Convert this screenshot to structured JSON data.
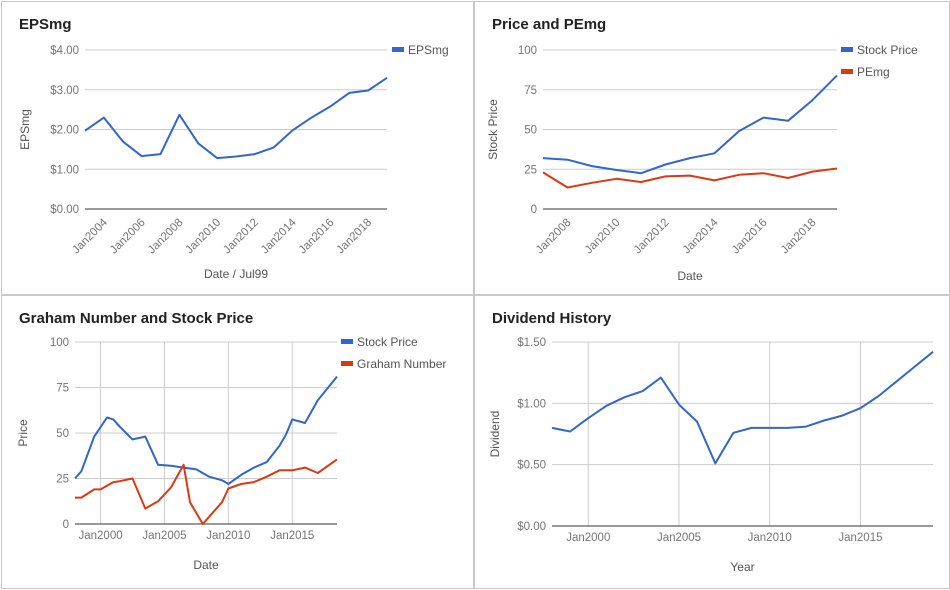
{
  "colors": {
    "blue": "#3366cc",
    "red": "#dc3912",
    "grid": "#cccccc",
    "axis": "#333333"
  },
  "chart_data": [
    {
      "type": "line",
      "title": "EPSmg",
      "xlabel": "Date / Jul99",
      "ylabel": "EPSmg",
      "xlim": [
        2003.0,
        2019.0
      ],
      "ylim": [
        0,
        4
      ],
      "yticks": [
        0,
        1,
        2,
        3,
        4
      ],
      "yticklabels": [
        "$0.00",
        "$1.00",
        "$2.00",
        "$3.00",
        "$4.00"
      ],
      "xticks": [
        2004,
        2006,
        2008,
        2010,
        2012,
        2014,
        2016,
        2018
      ],
      "xticklabels": [
        "Jan2004",
        "Jan2006",
        "Jan2008",
        "Jan2010",
        "Jan2012",
        "Jan2014",
        "Jan2016",
        "Jan2018"
      ],
      "x_grid": false,
      "legend": "right",
      "series": [
        {
          "name": "EPSmg",
          "color": "#3366cc",
          "x": [
            2003.0,
            2004.0,
            2005.0,
            2006.0,
            2007.0,
            2008.0,
            2009.0,
            2010.0,
            2011.0,
            2012.0,
            2013.0,
            2014.0,
            2015.0,
            2016.0,
            2017.0,
            2018.0,
            2019.0
          ],
          "y": [
            1.97,
            2.3,
            1.7,
            1.33,
            1.38,
            2.37,
            1.65,
            1.28,
            1.32,
            1.38,
            1.55,
            1.98,
            2.3,
            2.58,
            2.92,
            2.98,
            3.3
          ]
        }
      ]
    },
    {
      "type": "line",
      "title": "Price and PEmg",
      "xlabel": "Date",
      "ylabel": "Stock Price",
      "xlim": [
        2007.0,
        2019.0
      ],
      "ylim": [
        0,
        100
      ],
      "yticks": [
        0,
        25,
        50,
        75,
        100
      ],
      "yticklabels": [
        "0",
        "25",
        "50",
        "75",
        "100"
      ],
      "xticks": [
        2008,
        2010,
        2012,
        2014,
        2016,
        2018
      ],
      "xticklabels": [
        "Jan2008",
        "Jan2010",
        "Jan2012",
        "Jan2014",
        "Jan2016",
        "Jan2018"
      ],
      "x_grid": false,
      "legend": "right",
      "series": [
        {
          "name": "Stock Price",
          "color": "#3366cc",
          "x": [
            2007.0,
            2008.0,
            2009.0,
            2010.0,
            2011.0,
            2012.0,
            2013.0,
            2014.0,
            2015.0,
            2016.0,
            2017.0,
            2018.0,
            2019.0
          ],
          "y": [
            32,
            31,
            27,
            24.5,
            22.5,
            28,
            32,
            35,
            49,
            57.5,
            55.5,
            68.5,
            84
          ]
        },
        {
          "name": "PEmg",
          "color": "#dc3912",
          "x": [
            2007.0,
            2008.0,
            2009.0,
            2010.0,
            2011.0,
            2012.0,
            2013.0,
            2014.0,
            2015.0,
            2016.0,
            2017.0,
            2018.0,
            2019.0
          ],
          "y": [
            23,
            13.5,
            16.5,
            19,
            17,
            20.5,
            21,
            18,
            21.5,
            22.5,
            19.5,
            23.5,
            25.5
          ]
        }
      ]
    },
    {
      "type": "line",
      "title": "Graham Number and Stock Price",
      "xlabel": "Date",
      "ylabel": "Price",
      "xlim": [
        1998.0,
        2018.5
      ],
      "ylim": [
        0,
        100
      ],
      "yticks": [
        0,
        25,
        50,
        75,
        100
      ],
      "yticklabels": [
        "0",
        "25",
        "50",
        "75",
        "100"
      ],
      "xticks": [
        2000,
        2005,
        2010,
        2015
      ],
      "xticklabels": [
        "Jan2000",
        "Jan2005",
        "Jan2010",
        "Jan2015"
      ],
      "x_grid": true,
      "legend": "right",
      "series": [
        {
          "name": "Stock Price",
          "color": "#3366cc",
          "x": [
            1998.0,
            1998.5,
            1999.5,
            2000.5,
            2001.0,
            2001.5,
            2002.5,
            2003.5,
            2004.5,
            2005.5,
            2006.5,
            2007.5,
            2008.5,
            2009.5,
            2010.0,
            2011.0,
            2012.0,
            2013.0,
            2014.0,
            2014.5,
            2015.0,
            2016.0,
            2017.0,
            2018.5
          ],
          "y": [
            25,
            29,
            48,
            58.5,
            57.5,
            53.5,
            46.5,
            48,
            32.5,
            32,
            31,
            30,
            26,
            24,
            22,
            27,
            31,
            34,
            43,
            49,
            57.5,
            55.5,
            68,
            81
          ]
        },
        {
          "name": "Graham Number",
          "color": "#dc3912",
          "x": [
            1998.0,
            1998.5,
            1999.5,
            2000.0,
            2001.0,
            2001.5,
            2002.5,
            2003.5,
            2004.5,
            2005.5,
            2006.5,
            2007.0,
            2008.0,
            2008.5,
            2009.5,
            2010.0,
            2011.0,
            2012.0,
            2013.0,
            2014.0,
            2015.0,
            2016.0,
            2017.0,
            2018.5
          ],
          "y": [
            14.5,
            14.5,
            19,
            19,
            23,
            23.5,
            25,
            8.5,
            12.5,
            20,
            32.5,
            12,
            0,
            4,
            12,
            19.5,
            22,
            23,
            26,
            29.5,
            29.5,
            31,
            28,
            35.5
          ]
        }
      ]
    },
    {
      "type": "line",
      "title": "Dividend History",
      "xlabel": "Year",
      "ylabel": "Dividend",
      "xlim": [
        1998.0,
        2019.0
      ],
      "ylim": [
        0,
        1.5
      ],
      "yticks": [
        0,
        0.5,
        1.0,
        1.5
      ],
      "yticklabels": [
        "$0.00",
        "$0.50",
        "$1.00",
        "$1.50"
      ],
      "xticks": [
        2000,
        2005,
        2010,
        2015
      ],
      "xticklabels": [
        "Jan2000",
        "Jan2005",
        "Jan2010",
        "Jan2015"
      ],
      "x_grid": true,
      "legend": "none",
      "series": [
        {
          "name": "",
          "color": "#3366cc",
          "x": [
            1998.0,
            1999.0,
            2000.0,
            2001.0,
            2002.0,
            2003.0,
            2004.0,
            2005.0,
            2006.0,
            2007.0,
            2008.0,
            2009.0,
            2010.0,
            2011.0,
            2012.0,
            2013.0,
            2014.0,
            2015.0,
            2016.0,
            2017.0,
            2018.0,
            2019.0
          ],
          "y": [
            0.8,
            0.77,
            0.88,
            0.98,
            1.05,
            1.1,
            1.21,
            0.99,
            0.85,
            0.51,
            0.76,
            0.8,
            0.8,
            0.8,
            0.81,
            0.86,
            0.9,
            0.96,
            1.06,
            1.18,
            1.3,
            1.42
          ]
        }
      ]
    }
  ]
}
